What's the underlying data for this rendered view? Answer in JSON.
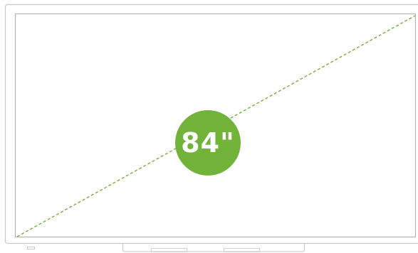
{
  "screen_size_label": "84\"",
  "colors": {
    "accent": "#72b33a",
    "frame": "#c8c8c8",
    "background": "#ffffff"
  },
  "icons": {
    "diagonal": "diagonal-dashed-line",
    "badge": "size-circle-badge"
  }
}
